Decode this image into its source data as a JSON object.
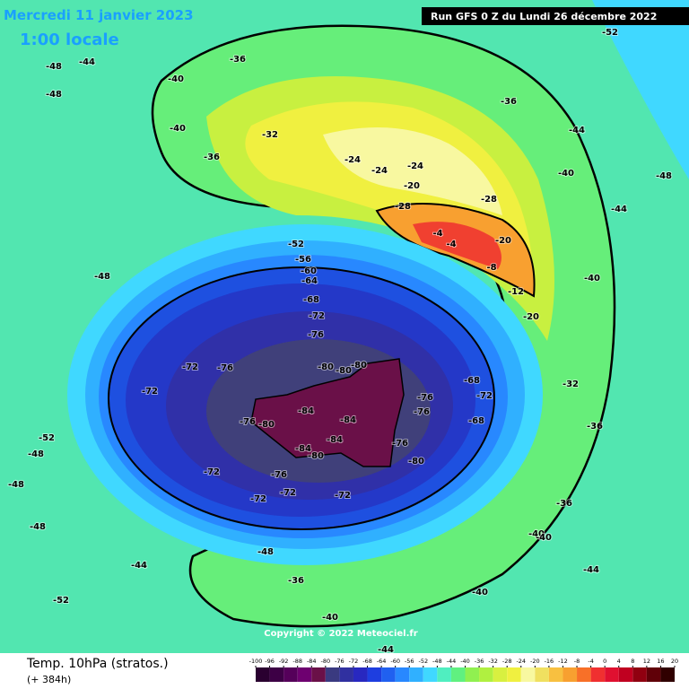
{
  "header": {
    "date": "Mercredi 11 janvier 2023",
    "time": "1:00 locale",
    "run": "Run GFS 0 Z du Lundi 26 décembre 2022"
  },
  "map": {
    "copyright": "Copyright © 2022 Meteociel.fr",
    "contour_labels": [
      -52,
      -44,
      -48,
      -36,
      -40,
      -48,
      -40,
      -36,
      -32,
      -24,
      -24,
      -24,
      -20,
      -28,
      -28,
      -36,
      -44,
      -48,
      -40,
      -40,
      -44,
      -4,
      -4,
      -8,
      -12,
      -20,
      -20,
      -52,
      -56,
      -60,
      -64,
      -68,
      -72,
      -76,
      -80,
      -80,
      -84,
      -84,
      -84,
      -80,
      -76,
      -72,
      -68,
      -72,
      -76,
      -72,
      -72,
      -72,
      -76,
      -80,
      -84,
      -80,
      -76,
      -72,
      -68,
      -72,
      -76,
      -76,
      -80,
      -32,
      -36,
      -36,
      -40,
      -44,
      -48,
      -48,
      -52,
      -48,
      -48,
      -36,
      -40,
      -40,
      -44,
      -48,
      -52,
      -40,
      -44
    ]
  },
  "footer": {
    "title": "Temp. 10hPa (stratos.)",
    "lead": "(+ 384h)"
  },
  "colorbar": {
    "ticks": [
      -100,
      -96,
      -92,
      -88,
      -84,
      -80,
      -76,
      -72,
      -68,
      -64,
      -60,
      -56,
      -52,
      -48,
      -44,
      -40,
      -36,
      -32,
      -28,
      -24,
      -20,
      -16,
      -12,
      -8,
      -4,
      0,
      4,
      8,
      12,
      16,
      20
    ],
    "colors": [
      "#2a0030",
      "#3d0045",
      "#55005a",
      "#6e0070",
      "#6a1048",
      "#3a3a80",
      "#3030a0",
      "#2828c0",
      "#1e3ee0",
      "#2060f0",
      "#2888ff",
      "#30b0ff",
      "#40d8ff",
      "#50eec0",
      "#60f080",
      "#90f050",
      "#b0f040",
      "#d8f040",
      "#f0f040",
      "#f8f8a0",
      "#f0e060",
      "#f8c040",
      "#f8a030",
      "#f87028",
      "#f03030",
      "#e01030",
      "#c00020",
      "#900010",
      "#600008",
      "#300000"
    ]
  }
}
